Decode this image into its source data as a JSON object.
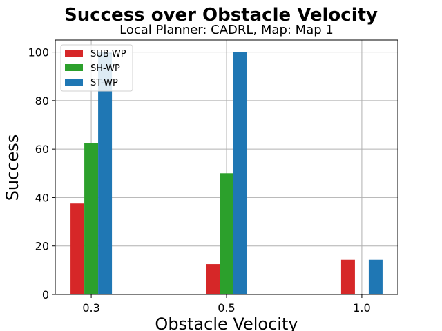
{
  "chart_data": {
    "type": "bar",
    "title": "Success over Obstacle Velocity",
    "subtitle": "Local Planner: CADRL, Map: Map 1",
    "xlabel": "Obstacle Velocity",
    "ylabel": "Success",
    "categories": [
      "0.3",
      "0.5",
      "1.0"
    ],
    "series": [
      {
        "name": "SUB-WP",
        "color": "#d62728",
        "values": [
          37.5,
          12.5,
          14.3
        ]
      },
      {
        "name": "SH-WP",
        "color": "#2ca02c",
        "values": [
          62.5,
          50.0,
          0
        ]
      },
      {
        "name": "ST-WP",
        "color": "#1f77b4",
        "values": [
          100.0,
          100.0,
          14.3
        ]
      }
    ],
    "ylim": [
      0,
      105
    ],
    "yticks": [
      0,
      20,
      40,
      60,
      80,
      100
    ],
    "grid": true,
    "legend_position": "top-left"
  }
}
